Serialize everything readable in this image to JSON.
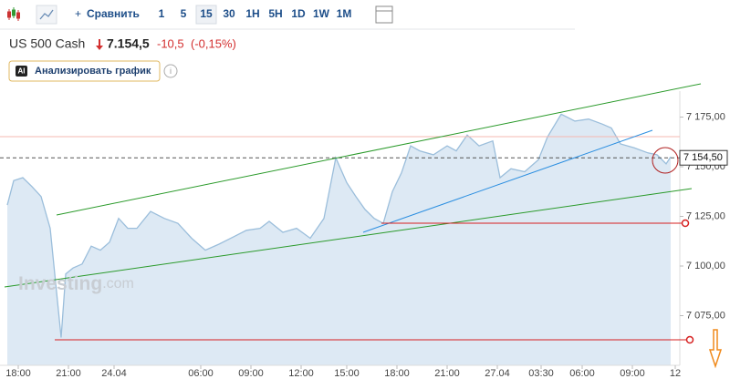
{
  "toolbar": {
    "compare": "Сравнить",
    "timeframes": [
      "1",
      "5",
      "15",
      "30",
      "1H",
      "5H",
      "1D",
      "1W",
      "1M"
    ],
    "active_timeframe": "15"
  },
  "quote": {
    "symbol": "US 500 Cash",
    "price": "7.154,5",
    "change": "-10,5",
    "change_percent": "(-0,15%)"
  },
  "analyze_button": {
    "icon": "AI",
    "label": "Анализировать график"
  },
  "watermark": {
    "brand": "Investing",
    "suffix": ".com"
  },
  "chart_data": {
    "type": "area",
    "color": "#9bbedb",
    "fill": "#dde9f4",
    "x": [
      1.6,
      3,
      5,
      7,
      9,
      11,
      12,
      13.4,
      14.4,
      16,
      18,
      20,
      22,
      24,
      26,
      28,
      30,
      33,
      36,
      39,
      42,
      45,
      48,
      51,
      54,
      57,
      59,
      62,
      65,
      68,
      71,
      73.6,
      76,
      78,
      80,
      82,
      84,
      86,
      88,
      90,
      92,
      95,
      98,
      100,
      102.4,
      105,
      108,
      109.6,
      112,
      115,
      118,
      120,
      123,
      126,
      129,
      132,
      134,
      136,
      139,
      142,
      144,
      146,
      147
    ],
    "values": [
      7130.7,
      7143,
      7144.5,
      7140,
      7135,
      7119,
      7096,
      7064,
      7096,
      7099,
      7101,
      7110,
      7108,
      7112,
      7124,
      7119,
      7119,
      7127.5,
      7124,
      7121.5,
      7114,
      7108,
      7111,
      7114.5,
      7118,
      7119,
      7122.5,
      7117,
      7119,
      7114,
      7124,
      7154.5,
      7142,
      7135,
      7128.5,
      7124,
      7121.5,
      7137.5,
      7147,
      7160.5,
      7158,
      7156,
      7160.5,
      7158,
      7166,
      7160.5,
      7163,
      7144.5,
      7149,
      7147.5,
      7153.5,
      7165,
      7176.5,
      7173,
      7174,
      7171.5,
      7169.5,
      7161.5,
      7159.5,
      7157,
      7156,
      7151.5,
      7155
    ],
    "xlim": [
      0,
      150
    ],
    "ylim": [
      7050,
      7193
    ],
    "xticks": [
      {
        "value": 4,
        "label": "18:00"
      },
      {
        "value": 15,
        "label": "21:00"
      },
      {
        "value": 25,
        "label": "24.04"
      },
      {
        "value": 44,
        "label": "06:00"
      },
      {
        "value": 55,
        "label": "09:00"
      },
      {
        "value": 66,
        "label": "12:00"
      },
      {
        "value": 76,
        "label": "15:00"
      },
      {
        "value": 87,
        "label": "18:00"
      },
      {
        "value": 98,
        "label": "21:00"
      },
      {
        "value": 109,
        "label": "27.04"
      },
      {
        "value": 118.6,
        "label": "03:30"
      },
      {
        "value": 127.6,
        "label": "06:00"
      },
      {
        "value": 138.6,
        "label": "09:00"
      },
      {
        "value": 148,
        "label": "12"
      }
    ],
    "yticks": [
      {
        "value": 7175,
        "label": "7 175,00"
      },
      {
        "value": 7150,
        "label": "7 150,00"
      },
      {
        "value": 7125,
        "label": "7 125,00"
      },
      {
        "value": 7100,
        "label": "7 100,00"
      },
      {
        "value": 7075,
        "label": "7 075,00"
      }
    ],
    "current_price": {
      "value": 7154.5,
      "label": "7 154,50"
    }
  }
}
